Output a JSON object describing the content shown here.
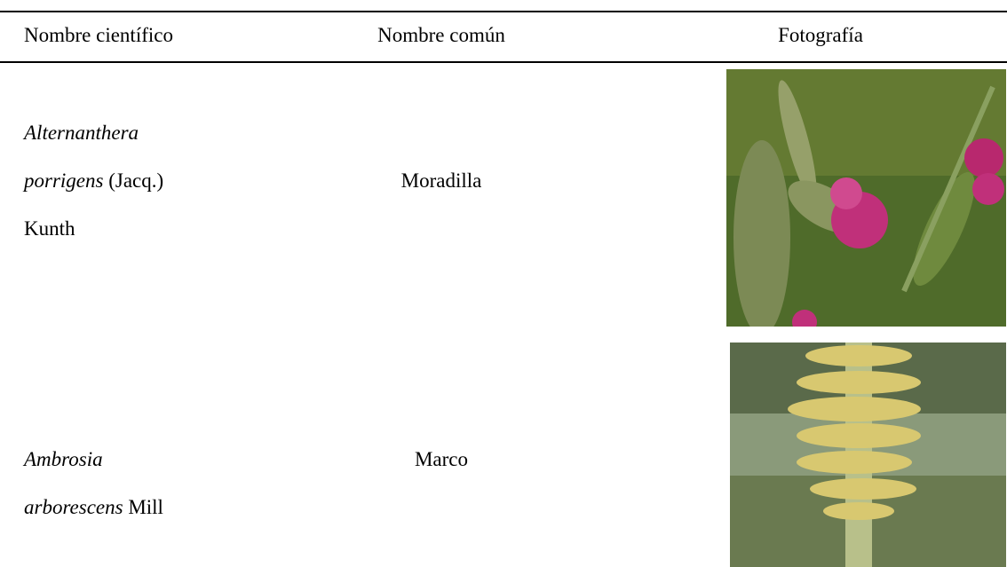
{
  "table": {
    "headers": [
      "Nombre científico",
      "Nombre común",
      "Fotografía"
    ],
    "rows": [
      {
        "scientific_name": [
          [
            {
              "text": "Alternanthera",
              "italic": true
            }
          ],
          [
            {
              "text": "porrigens",
              "italic": true
            },
            {
              "text": " (Jacq.)",
              "italic": false
            }
          ],
          [
            {
              "text": "Kunth",
              "italic": false
            }
          ]
        ],
        "common_name": "Moradilla"
      },
      {
        "scientific_name": [
          [
            {
              "text": "Ambrosia",
              "italic": true
            }
          ],
          [
            {
              "text": "arborescens",
              "italic": true
            },
            {
              "text": " Mill",
              "italic": false
            }
          ]
        ],
        "common_name": "Marco"
      }
    ]
  }
}
